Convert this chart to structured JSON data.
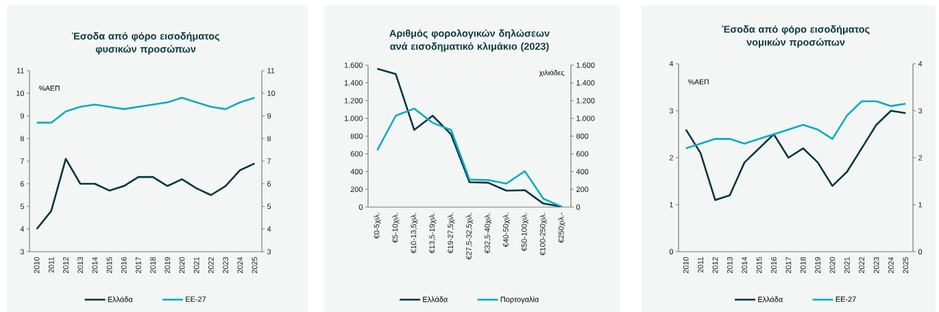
{
  "chart_data": [
    {
      "type": "line",
      "title": "Έσοδα από φόρο εισοδήματος φυσικών προσώπων",
      "annotations": [
        "%ΑΕΠ"
      ],
      "categories": [
        "2010",
        "2011",
        "2012",
        "2013",
        "2014",
        "2015",
        "2016",
        "2017",
        "2018",
        "2019",
        "2020",
        "2021",
        "2022",
        "2023",
        "2024",
        "2025"
      ],
      "series": [
        {
          "name": "Ελλάδα",
          "color": "#00363f",
          "values": [
            4.0,
            4.8,
            7.1,
            6.0,
            6.0,
            5.7,
            5.9,
            6.3,
            6.3,
            5.9,
            6.2,
            5.8,
            5.5,
            5.9,
            6.6,
            6.9
          ]
        },
        {
          "name": "ΕΕ-27",
          "color": "#00adc1",
          "values": [
            8.7,
            8.7,
            9.2,
            9.4,
            9.5,
            9.4,
            9.3,
            9.4,
            9.5,
            9.6,
            9.8,
            9.6,
            9.4,
            9.3,
            9.6,
            9.8
          ]
        }
      ],
      "ylim": [
        3,
        11
      ],
      "yticks": [
        3,
        4,
        5,
        6,
        7,
        8,
        9,
        10,
        11
      ],
      "y2lim": [
        3,
        11
      ],
      "y2ticks": [
        3,
        4,
        5,
        6,
        7,
        8,
        9,
        10,
        11
      ],
      "legend": "bottom"
    },
    {
      "type": "line",
      "title": "Αριθμός φορολογικών δηλώσεων ανά εισοδηματικό κλιμάκιο (2023)",
      "annotations": [
        "χιλιάδες"
      ],
      "categories": [
        "€0-5χιλ.",
        "€5-10χιλ.",
        "€10-13,5χιλ.",
        "€13,5-19χιλ.",
        "€19-27,5χιλ.",
        "€27,5-32,5χιλ.",
        "€32,5-40χιλ.",
        "€40-50χιλ.",
        "€50-100χιλ.",
        "€100-250χιλ.",
        "€250χιλ.-"
      ],
      "series": [
        {
          "name": "Ελλάδα",
          "color": "#00363f",
          "values": [
            1560,
            1500,
            870,
            1030,
            820,
            280,
            275,
            185,
            190,
            40,
            5
          ]
        },
        {
          "name": "Πορτογαλία",
          "color": "#00adc1",
          "values": [
            640,
            1030,
            1110,
            950,
            870,
            310,
            305,
            265,
            405,
            95,
            5
          ]
        }
      ],
      "ylim": [
        0,
        1600
      ],
      "yticks": [
        0,
        200,
        400,
        600,
        800,
        {
          "value": 1000,
          "label": "1.000"
        },
        {
          "value": 1200,
          "label": "1.200"
        },
        {
          "value": 1400,
          "label": "1.400"
        },
        {
          "value": 1600,
          "label": "1.600"
        }
      ],
      "y2lim": [
        0,
        1600
      ],
      "y2ticks": [
        0,
        200,
        400,
        600,
        800,
        {
          "value": 1000,
          "label": "1.000"
        },
        {
          "value": 1200,
          "label": "1.200"
        },
        {
          "value": 1400,
          "label": "1.400"
        },
        {
          "value": 1600,
          "label": "1.600"
        }
      ],
      "legend": "bottom"
    },
    {
      "type": "line",
      "title": "Έσοδα από φόρο εισοδήματος νομικών προσώπων",
      "annotations": [
        "%ΑΕΠ"
      ],
      "categories": [
        "2010",
        "2011",
        "2012",
        "2013",
        "2014",
        "2015",
        "2016",
        "2017",
        "2018",
        "2019",
        "2020",
        "2021",
        "2022",
        "2023",
        "2024",
        "2025"
      ],
      "series": [
        {
          "name": "Ελλάδα",
          "color": "#00363f",
          "values": [
            2.6,
            2.1,
            1.1,
            1.2,
            1.9,
            2.2,
            2.5,
            2.0,
            2.2,
            1.9,
            1.4,
            1.7,
            2.2,
            2.7,
            3.0,
            2.95
          ]
        },
        {
          "name": "ΕΕ-27",
          "color": "#00adc1",
          "values": [
            2.2,
            2.3,
            2.4,
            2.4,
            2.3,
            2.4,
            2.5,
            2.6,
            2.7,
            2.6,
            2.4,
            2.9,
            3.2,
            3.2,
            3.1,
            3.15
          ]
        }
      ],
      "ylim": [
        0,
        4
      ],
      "yticks": [
        0,
        1,
        2,
        3,
        4
      ],
      "y2lim": [
        0,
        4
      ],
      "y2ticks": [
        0,
        1,
        2,
        3,
        4
      ],
      "legend": "bottom"
    }
  ]
}
